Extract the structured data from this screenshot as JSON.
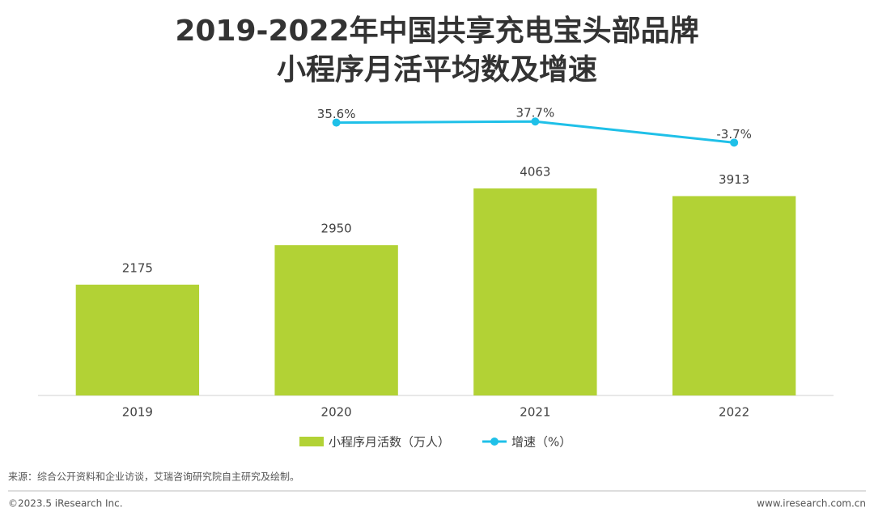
{
  "chart_data": {
    "type": "bar",
    "title": [
      "2019-2022年中国共享充电宝头部品牌",
      "小程序月活平均数及增速"
    ],
    "categories": [
      "2019",
      "2020",
      "2021",
      "2022"
    ],
    "series": [
      {
        "name": "小程序月活数（万人）",
        "type": "bar",
        "color": "#b2d235",
        "values": [
          2175,
          2950,
          4063,
          3913
        ]
      },
      {
        "name": "增速（%）",
        "type": "line",
        "axis": "y2",
        "color": "#1fc0e8",
        "values": [
          null,
          35.6,
          37.7,
          -3.7
        ],
        "value_labels": [
          null,
          "35.6%",
          "37.7%",
          "-3.7%"
        ]
      }
    ],
    "ylim": [
      0,
      6000
    ],
    "y2lim": [
      -500,
      100
    ]
  },
  "source": "来源：综合公开资料和企业访谈，艾瑞咨询研究院自主研究及绘制。",
  "copyright": "©2023.5 iResearch Inc.",
  "website": "www.iresearch.com.cn"
}
